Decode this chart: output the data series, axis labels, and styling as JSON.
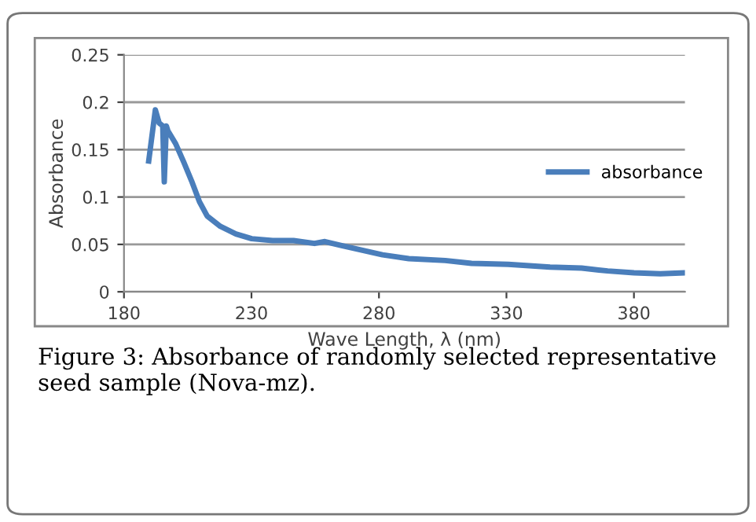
{
  "chart_data": {
    "type": "line",
    "xlabel": "Wave Length, λ (nm)",
    "ylabel": "Absorbance",
    "annotations": [
      "Figure 3: Absorbance of randomly selected representative seed sample (Nova-mz)."
    ],
    "xlim": [
      180,
      400
    ],
    "xticks": [
      180,
      230,
      280,
      330,
      380
    ],
    "ylim": [
      0,
      0.25
    ],
    "yticks": [
      0,
      0.05,
      0.1,
      0.15,
      0.2,
      0.25
    ],
    "grid": "y",
    "legend": "right",
    "marker": "none",
    "line_style": "solid",
    "series": [
      {
        "name": "absorbance",
        "color": "#4a7ebb",
        "x": [
          189.7,
          192.3,
          193.8,
          195.2,
          195.8,
          196.6,
          197.2,
          200.3,
          203.4,
          206.5,
          209.6,
          212.6,
          217.8,
          223.9,
          230.1,
          238.3,
          246.5,
          254.7,
          258.8,
          265,
          273.2,
          281.4,
          291.7,
          306,
          316.3,
          330.7,
          347.1,
          359.5,
          369.7,
          380,
          390.3,
          400
        ],
        "values": [
          0.138,
          0.192,
          0.178,
          0.175,
          0.116,
          0.175,
          0.17,
          0.156,
          0.137,
          0.117,
          0.095,
          0.08,
          0.069,
          0.061,
          0.056,
          0.054,
          0.054,
          0.051,
          0.053,
          0.049,
          0.044,
          0.039,
          0.035,
          0.033,
          0.03,
          0.029,
          0.026,
          0.025,
          0.022,
          0.02,
          0.019,
          0.02
        ]
      }
    ]
  }
}
